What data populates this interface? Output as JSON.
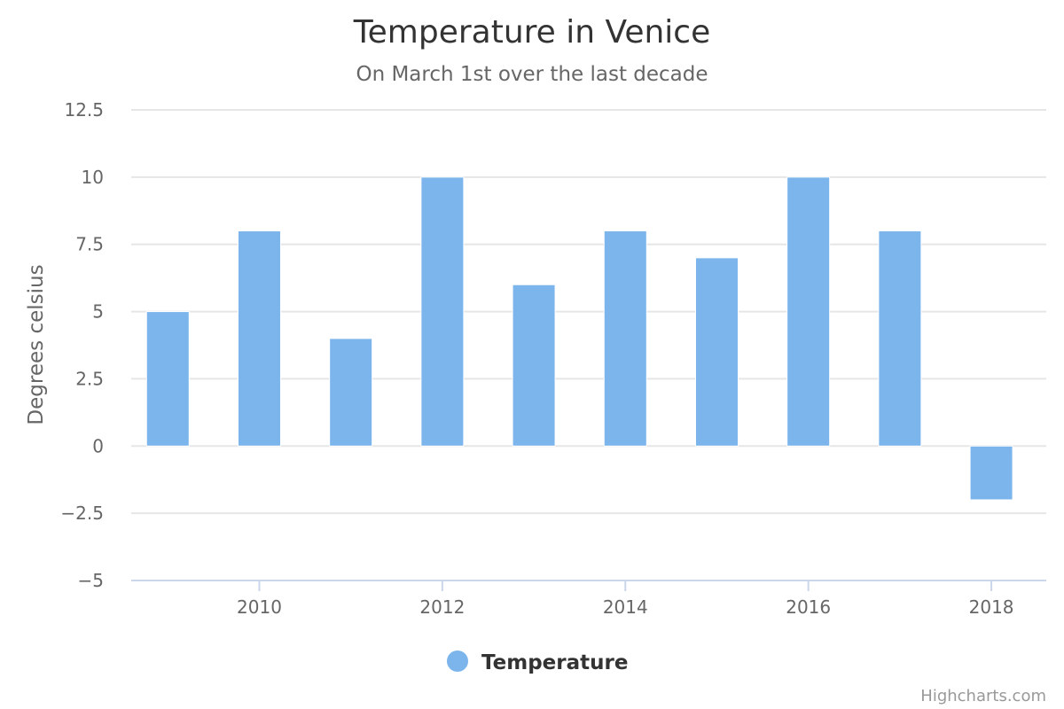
{
  "chart_data": {
    "type": "bar",
    "title": "Temperature in Venice",
    "subtitle": "On March 1st over the last decade",
    "ylabel": "Degrees celsius",
    "xlabel": "",
    "x": [
      2009,
      2010,
      2011,
      2012,
      2013,
      2014,
      2015,
      2016,
      2017,
      2018
    ],
    "series": [
      {
        "name": "Temperature",
        "values": [
          5,
          8,
          4,
          10,
          6,
          8,
          7,
          10,
          8,
          -2
        ]
      }
    ],
    "ylim": [
      -5,
      12.5
    ],
    "xlim": [
      2008.6,
      2018.6
    ],
    "y_ticks": [
      {
        "value": -5,
        "label": "−5"
      },
      {
        "value": -2.5,
        "label": "−2.5"
      },
      {
        "value": 0,
        "label": "0"
      },
      {
        "value": 2.5,
        "label": "2.5"
      },
      {
        "value": 5,
        "label": "5"
      },
      {
        "value": 7.5,
        "label": "7.5"
      },
      {
        "value": 10,
        "label": "10"
      },
      {
        "value": 12.5,
        "label": "12.5"
      }
    ],
    "x_ticks": [
      {
        "value": 2010,
        "label": "2010"
      },
      {
        "value": 2012,
        "label": "2012"
      },
      {
        "value": 2014,
        "label": "2014"
      },
      {
        "value": 2016,
        "label": "2016"
      },
      {
        "value": 2018,
        "label": "2018"
      }
    ],
    "grid": true,
    "legend_position": "bottom-center",
    "colors": {
      "bar": "#7cb5ec"
    }
  },
  "credits": "Highcharts.com"
}
